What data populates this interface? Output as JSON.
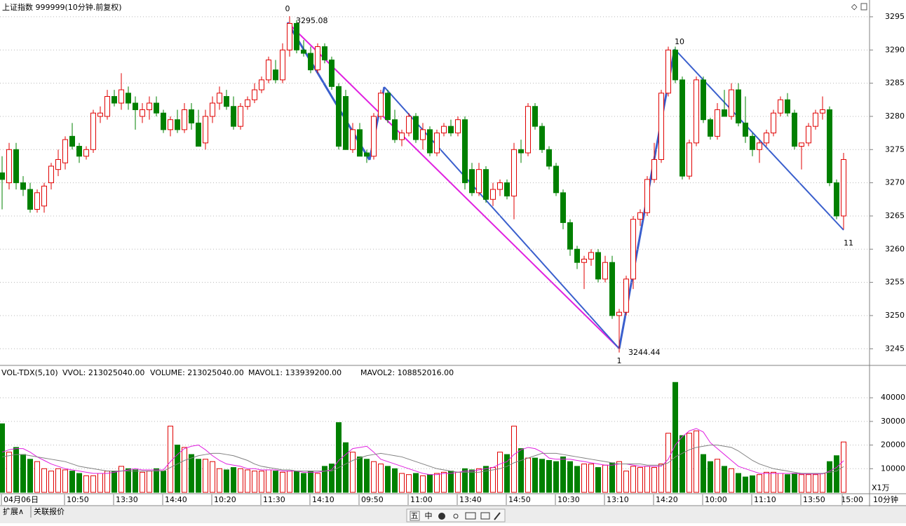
{
  "chart_data": [
    {
      "type": "candlestick",
      "title": "上证指数 999999(10分钟.前复权)",
      "up_color": "#e00000",
      "down_color": "#008000",
      "categories": [
        "04月06日",
        null,
        null,
        null,
        null,
        null,
        null,
        null,
        null,
        "10:50",
        null,
        null,
        null,
        null,
        null,
        null,
        "13:30",
        null,
        null,
        null,
        null,
        null,
        null,
        "14:40",
        null,
        null,
        null,
        null,
        null,
        null,
        "10:20",
        null,
        null,
        null,
        null,
        null,
        null,
        "11:30",
        null,
        null,
        null,
        null,
        null,
        null,
        "14:10",
        null,
        null,
        null,
        null,
        null,
        null,
        "09:50",
        null,
        null,
        null,
        null,
        null,
        null,
        "11:00",
        null,
        null,
        null,
        null,
        null,
        null,
        "13:40",
        null,
        null,
        null,
        null,
        null,
        null,
        "14:50",
        null,
        null,
        null,
        null,
        null,
        null,
        "10:30",
        null,
        null,
        null,
        null,
        null,
        null,
        "13:10",
        null,
        null,
        null,
        null,
        null,
        null,
        "14:20",
        null,
        null,
        null,
        null,
        null,
        null,
        "10:00",
        null,
        null,
        null,
        null,
        null,
        null,
        "11:10",
        null,
        null,
        null,
        null,
        null,
        null,
        "13:50",
        null,
        null,
        null,
        null,
        null,
        "15:00"
      ],
      "open": [
        3271.5,
        3270,
        3275,
        3270,
        3269,
        3266,
        3266.5,
        3270,
        3272,
        3273,
        3277,
        3275.5,
        3274,
        3275,
        3280,
        3280,
        3283,
        3282,
        3283.5,
        3282,
        3280,
        3281,
        3282,
        3280.5,
        3278,
        3279.5,
        3278,
        3281,
        3279,
        3276,
        3280,
        3282,
        3283,
        3281.5,
        3278.5,
        3281.5,
        3282.5,
        3284,
        3285.5,
        3287,
        3285.5,
        3290,
        3294,
        3290,
        3289.5,
        3287,
        3290.5,
        3288.5,
        3284.5,
        3283,
        3275,
        3278,
        3274.5,
        3274,
        3280,
        3283.5,
        3279.5,
        3276.5,
        3277.5,
        3280,
        3276.5,
        3278,
        3274.5,
        3277.5,
        3278.5,
        3277.5,
        3279.5,
        3272,
        3268.5,
        3272,
        3267.5,
        3269,
        3270,
        3268,
        3275,
        3274.5,
        3281.5,
        3278.5,
        3275,
        3272.5,
        3268.5,
        3264,
        3260,
        3258,
        3258.5,
        3259.5,
        3255.5,
        3258,
        3250,
        3250.5,
        3255.5,
        3264.5,
        3265.5,
        3270.5,
        3273.5,
        3283.5,
        3290,
        3285.5,
        3271,
        3276,
        3285.5,
        3279.5,
        3277,
        3281,
        3280,
        3284,
        3279,
        3277,
        3275,
        3276,
        3277.5,
        3280.5,
        3282.5,
        3280.5,
        3275.5,
        3276,
        3278.5,
        3280.5,
        3281,
        3270,
        3265
      ],
      "high": [
        3274,
        3276,
        3276,
        3271,
        3270,
        3269,
        3270,
        3273,
        3275,
        3277,
        3279,
        3276,
        3275.5,
        3281,
        3281.5,
        3284,
        3284,
        3286.5,
        3284.5,
        3283,
        3282,
        3283,
        3283,
        3281,
        3280,
        3281,
        3282,
        3282,
        3281,
        3281,
        3283,
        3284.5,
        3284,
        3283,
        3282,
        3283,
        3285,
        3286,
        3289,
        3288.5,
        3291,
        3295.08,
        3294.5,
        3291.5,
        3290.5,
        3291,
        3291,
        3289,
        3285,
        3284,
        3279,
        3279,
        3275,
        3280.5,
        3284,
        3284,
        3281,
        3278,
        3280.5,
        3280.5,
        3279,
        3278.5,
        3278,
        3279,
        3279.5,
        3280,
        3280,
        3273,
        3273,
        3272.5,
        3270,
        3270.5,
        3270.5,
        3276,
        3276.5,
        3282,
        3282,
        3279,
        3275.5,
        3273,
        3269,
        3264.5,
        3260.5,
        3259,
        3260,
        3260,
        3259,
        3259,
        3251,
        3256,
        3265,
        3266,
        3271,
        3276,
        3284,
        3290.5,
        3290.5,
        3286,
        3276.5,
        3286,
        3286,
        3279.8,
        3282,
        3284,
        3285,
        3285,
        3283,
        3277.5,
        3276.5,
        3278,
        3281,
        3283,
        3283.5,
        3281,
        3276,
        3279,
        3281,
        3283,
        3281.5,
        3270.5,
        3274.5
      ],
      "low": [
        3266,
        3269,
        3269,
        3268,
        3265.5,
        3265.5,
        3265.5,
        3269,
        3271,
        3272,
        3275,
        3273,
        3273.5,
        3274.5,
        3279,
        3279.5,
        3281.5,
        3281,
        3281,
        3278,
        3279,
        3279.5,
        3280,
        3277.5,
        3277,
        3277.5,
        3277.5,
        3278,
        3275.5,
        3275,
        3279,
        3281,
        3281,
        3278,
        3278,
        3281,
        3282,
        3283.5,
        3285,
        3285,
        3285,
        3289,
        3289.5,
        3289,
        3286.5,
        3286.5,
        3288,
        3284,
        3275,
        3275,
        3274.5,
        3274,
        3273,
        3273.5,
        3279.5,
        3279,
        3276,
        3275.5,
        3277,
        3276,
        3275,
        3274,
        3274,
        3277,
        3277,
        3277,
        3269,
        3268,
        3268,
        3267,
        3266.5,
        3268,
        3267.5,
        3264.5,
        3273,
        3274,
        3278,
        3274.5,
        3272,
        3268,
        3263,
        3259,
        3257,
        3254,
        3257.5,
        3255,
        3255,
        3249.5,
        3244.44,
        3250,
        3254,
        3263.5,
        3265,
        3270,
        3273,
        3283,
        3285,
        3270.5,
        3270.5,
        3275.5,
        3279,
        3276.5,
        3276.5,
        3280,
        3279.5,
        3278.5,
        3276,
        3274,
        3273,
        3275.5,
        3277,
        3280,
        3280,
        3275,
        3272,
        3275.5,
        3278,
        3279.5,
        3269.5,
        3264.5,
        3263
      ],
      "close": [
        3270.5,
        3275,
        3270,
        3269,
        3266,
        3268.5,
        3269.5,
        3272.5,
        3273.5,
        3276.5,
        3275.5,
        3274,
        3275,
        3280.5,
        3280.5,
        3283,
        3282,
        3284,
        3282,
        3281,
        3281,
        3282,
        3280.5,
        3278,
        3279.5,
        3278,
        3281,
        3279,
        3275.5,
        3280,
        3282,
        3283.5,
        3281.5,
        3278.5,
        3281.5,
        3282.5,
        3284,
        3285.5,
        3288.5,
        3285.5,
        3290,
        3294,
        3290,
        3289.5,
        3287,
        3290.5,
        3288.5,
        3284.5,
        3275.5,
        3275,
        3278,
        3274,
        3274,
        3280,
        3283.5,
        3279.5,
        3276.5,
        3277.5,
        3280,
        3276.5,
        3278,
        3274.5,
        3277.5,
        3278.5,
        3277.5,
        3279.5,
        3270,
        3268.5,
        3272,
        3267.5,
        3269,
        3270,
        3268,
        3275,
        3274.5,
        3281.5,
        3278.5,
        3275,
        3272.5,
        3268.5,
        3264,
        3260,
        3258,
        3258.5,
        3259.5,
        3255.5,
        3258,
        3250,
        3250.5,
        3255.5,
        3264.5,
        3265.5,
        3270.5,
        3273.5,
        3283.5,
        3290,
        3285.5,
        3271,
        3276,
        3285.5,
        3279.5,
        3277,
        3281,
        3280,
        3284,
        3279,
        3277,
        3275,
        3276,
        3277.5,
        3280.5,
        3282.5,
        3280.5,
        3275.5,
        3276,
        3278.5,
        3280.5,
        3281,
        3270,
        3265,
        3273.5
      ],
      "ylim": [
        3242.6,
        3297
      ],
      "yticks": [
        3245,
        3250,
        3255,
        3260,
        3265,
        3270,
        3275,
        3280,
        3285,
        3290,
        3295
      ],
      "grid": true,
      "annotations": {
        "wave_labels": [
          "0",
          "1",
          "10",
          "11"
        ],
        "price_labels": [
          3295.08,
          3244.44
        ]
      }
    },
    {
      "type": "bar",
      "title": "VOL-TDX(5,10)",
      "indicator": "VVOL: 213025040.00",
      "y_unit": "X1万",
      "series": [
        {
          "name": "VOLUME: 213025040.00",
          "color": "#e020e0",
          "values": [
            29000,
            17000,
            19000,
            16000,
            14000,
            13000,
            10000,
            9000,
            10000,
            9500,
            9000,
            8000,
            7000,
            7000,
            8000,
            9000,
            9000,
            11000,
            10000,
            9500,
            8500,
            9000,
            10000,
            9000,
            28000,
            20000,
            19000,
            16000,
            14000,
            14000,
            13000,
            10000,
            9500,
            10500,
            10000,
            9500,
            9000,
            9000,
            9500,
            9000,
            8500,
            9000,
            9000,
            8000,
            9000,
            8000,
            11000,
            12000,
            29500,
            21000,
            17000,
            15000,
            14000,
            13000,
            12000,
            11000,
            10000,
            8000,
            7500,
            8000,
            7000,
            7500,
            8000,
            8500,
            9000,
            8500,
            10000,
            9500,
            10000,
            11000,
            10500,
            17000,
            16000,
            28000,
            18500,
            14500,
            14500,
            14000,
            13500,
            13000,
            15000,
            13000,
            11000,
            12000,
            12000,
            10500,
            11500,
            12500,
            13000,
            9000,
            11000,
            10500,
            11000,
            10500,
            12000,
            25000,
            46500,
            24000,
            25000,
            26000,
            16000,
            13000,
            14000,
            11000,
            10000,
            8000,
            6500,
            7000,
            7500,
            8500,
            8500,
            8000,
            7500,
            8000,
            7500,
            7500,
            7500,
            8000,
            13000,
            15500,
            21302.504
          ]
        },
        {
          "name": "MAVOL1: 133939200.00",
          "color": "#e020e0",
          "values": [
            17000,
            18000,
            18500,
            18500,
            17000,
            15000,
            13500,
            12000,
            11000,
            10000,
            9500,
            9000,
            8500,
            8000,
            8000,
            8000,
            8500,
            9000,
            9500,
            10000,
            9500,
            9500,
            9500,
            9500,
            13000,
            16000,
            18500,
            19500,
            20000,
            18000,
            15500,
            13500,
            12000,
            11500,
            11000,
            10000,
            10000,
            9500,
            9500,
            9500,
            9000,
            9000,
            9000,
            8500,
            8500,
            8500,
            9000,
            9500,
            13500,
            16000,
            18500,
            19000,
            19500,
            17000,
            14000,
            13000,
            12000,
            11000,
            10000,
            9000,
            8000,
            7500,
            7500,
            8000,
            8000,
            8500,
            9000,
            9000,
            9500,
            10000,
            10500,
            12000,
            13000,
            16000,
            18000,
            19000,
            18500,
            17000,
            14500,
            14000,
            14000,
            14000,
            13500,
            13000,
            12500,
            12000,
            11500,
            11500,
            12000,
            12000,
            11500,
            11000,
            11000,
            11000,
            11000,
            14000,
            20000,
            23500,
            26000,
            27000,
            25500,
            21000,
            18500,
            16000,
            13500,
            11000,
            10000,
            9000,
            8000,
            8000,
            8000,
            8000,
            8000,
            8000,
            7800,
            7800,
            7800,
            7800,
            9000,
            10500,
            13393.92
          ]
        },
        {
          "name": "MAVOL2: 108852016.00",
          "color": "#808080",
          "values": [
            15000,
            15500,
            16000,
            16000,
            15500,
            15000,
            14500,
            14000,
            13500,
            13000,
            12000,
            11000,
            10500,
            10000,
            9500,
            9000,
            9000,
            9000,
            9000,
            9000,
            9000,
            9000,
            9000,
            9000,
            10500,
            12000,
            13500,
            14500,
            15500,
            16000,
            16500,
            16500,
            16000,
            15500,
            14500,
            13500,
            12000,
            11000,
            10500,
            10000,
            9500,
            9500,
            9000,
            9000,
            9000,
            9000,
            9000,
            9000,
            10500,
            12000,
            13500,
            14500,
            15500,
            16000,
            16500,
            16000,
            15500,
            15000,
            14000,
            13000,
            12000,
            11000,
            10000,
            9500,
            9000,
            8500,
            8500,
            8500,
            8500,
            9000,
            9500,
            10000,
            11000,
            12500,
            13500,
            14500,
            15500,
            16500,
            16500,
            16500,
            16000,
            15500,
            15000,
            14500,
            14000,
            13500,
            13000,
            12500,
            12000,
            12000,
            12000,
            12000,
            11500,
            11500,
            11500,
            12500,
            15000,
            16500,
            18000,
            19000,
            19500,
            20000,
            20000,
            19500,
            19000,
            17500,
            15500,
            13500,
            12000,
            11000,
            10000,
            9500,
            9000,
            8500,
            8000,
            8000,
            8000,
            8000,
            8500,
            9000,
            10885.2016
          ]
        }
      ],
      "ylim": [
        0,
        53400
      ],
      "yticks": [
        10000,
        20000,
        30000,
        40000
      ],
      "grid": true
    }
  ],
  "ui": {
    "period": "10分钟",
    "tabs": [
      "扩展∧",
      "关联报价"
    ],
    "toolbar": [
      "五",
      "中"
    ]
  }
}
